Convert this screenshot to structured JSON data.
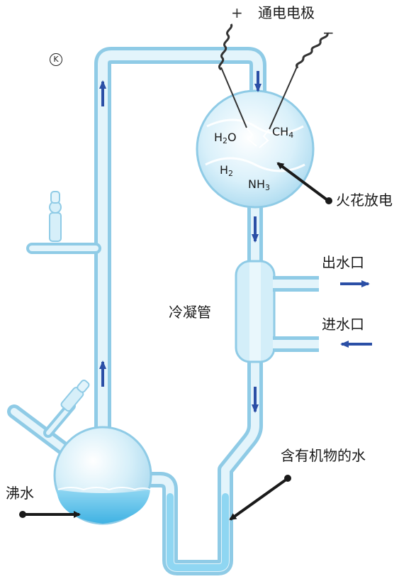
{
  "colors": {
    "glass": "#bfe6f6",
    "glass_edge": "#8fcbe6",
    "water": "#6cc8ec",
    "arrow_blue": "#2b4fa6",
    "pointer": "#1a1a1a"
  },
  "electrode": {
    "plus": "+",
    "label": "通电电极",
    "minus": "−"
  },
  "k_mark": "K",
  "chemicals": {
    "h2o": {
      "main": "H",
      "sub": "2",
      "tail": "O"
    },
    "ch4": {
      "main": "CH",
      "sub": "4"
    },
    "h2": {
      "main": "H",
      "sub": "2"
    },
    "nh3": {
      "main": "NH",
      "sub": "3"
    }
  },
  "labels": {
    "spark": "火花放电",
    "outlet": "出水口",
    "condenser": "冷凝管",
    "inlet": "进水口",
    "organic_water": "含有机物的水",
    "boiling_water": "沸水"
  },
  "icons": [
    "coil-electrode-icon",
    "flow-arrow-icon",
    "pointer-arrow-icon"
  ]
}
